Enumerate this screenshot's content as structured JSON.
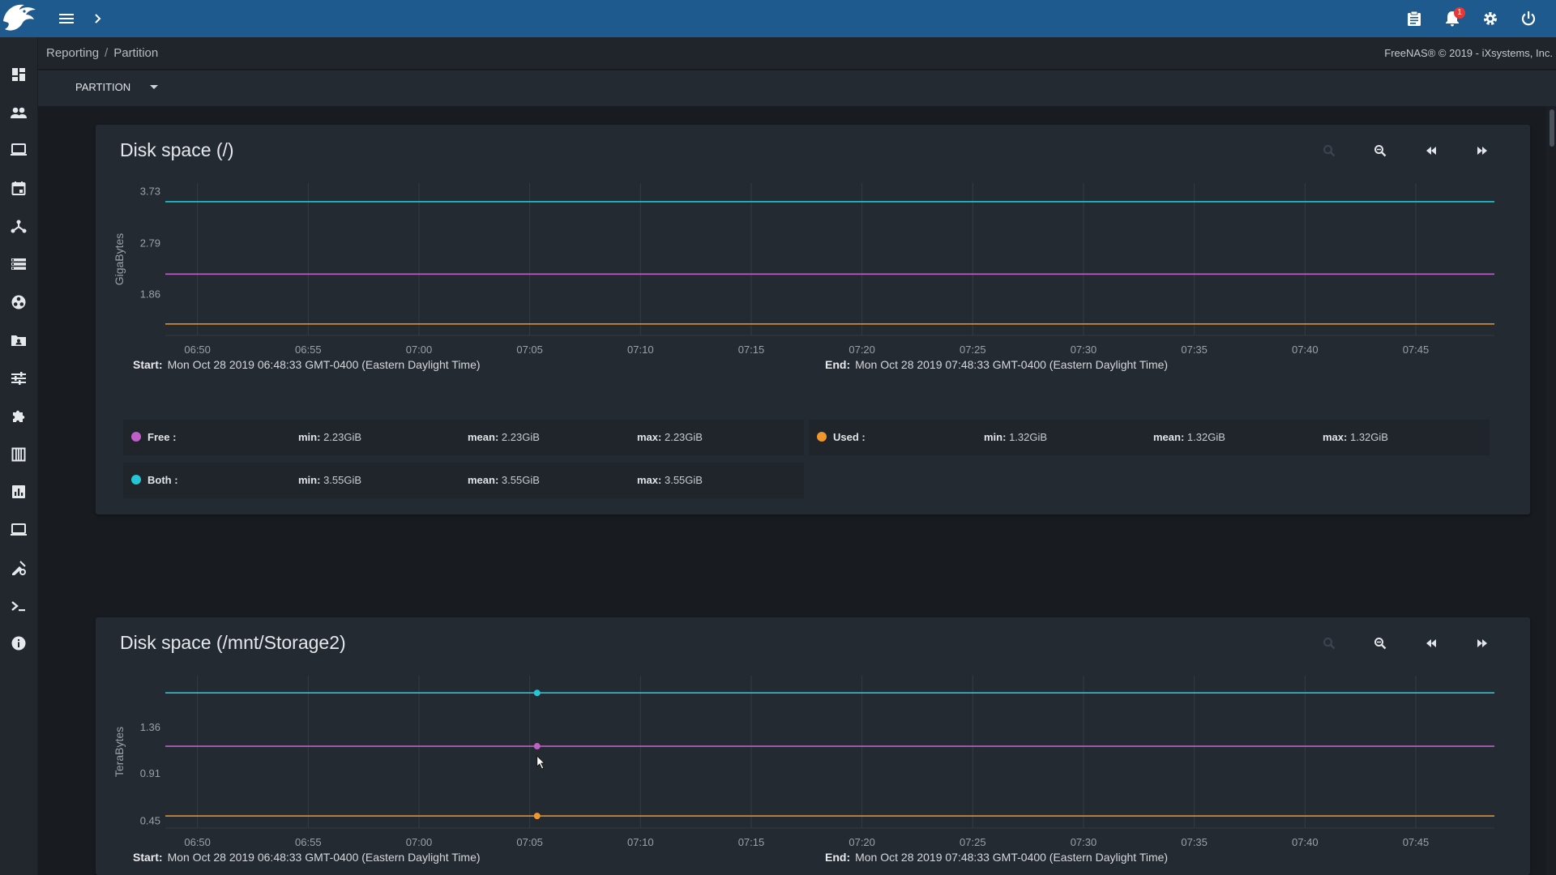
{
  "topbar": {
    "notification_count": "1",
    "icons": [
      "freenas-logo-icon",
      "menu-icon",
      "chevron-right-icon",
      "clipboard-icon",
      "bell-icon",
      "gear-icon",
      "power-icon"
    ]
  },
  "sidebar": {
    "items": [
      {
        "name": "dashboard-icon"
      },
      {
        "name": "accounts-icon"
      },
      {
        "name": "system-icon"
      },
      {
        "name": "tasks-icon"
      },
      {
        "name": "network-icon"
      },
      {
        "name": "storage-icon"
      },
      {
        "name": "directory-services-icon"
      },
      {
        "name": "sharing-icon"
      },
      {
        "name": "services-icon"
      },
      {
        "name": "plugins-icon"
      },
      {
        "name": "jails-icon"
      },
      {
        "name": "reporting-icon"
      },
      {
        "name": "virtual-machines-icon"
      },
      {
        "name": "display-system-processes-icon"
      },
      {
        "name": "shell-icon"
      },
      {
        "name": "guide-icon"
      }
    ]
  },
  "breadcrumb": {
    "items": [
      "Reporting",
      "Partition"
    ],
    "separator": "/"
  },
  "copyright": "FreeNAS® © 2019 - iXsystems, Inc.",
  "toolbar": {
    "selected_report": "PARTITION"
  },
  "colors": {
    "accent": "#1f5a8e",
    "free": "#c05fc8",
    "used": "#f0962a",
    "both": "#25c6d4"
  },
  "charts": [
    {
      "title": "Disk space (/)",
      "start_label": "Start:",
      "start": "Mon Oct 28 2019 06:48:33 GMT-0400 (Eastern Daylight Time)",
      "end_label": "End:",
      "end": "Mon Oct 28 2019 07:48:33 GMT-0400 (Eastern Daylight Time)",
      "legend": [
        {
          "name": "Free :",
          "min_label": "min:",
          "min": "2.23GiB",
          "mean_label": "mean:",
          "mean": "2.23GiB",
          "max_label": "max:",
          "max": "2.23GiB"
        },
        {
          "name": "Used :",
          "min_label": "min:",
          "min": "1.32GiB",
          "mean_label": "mean:",
          "mean": "1.32GiB",
          "max_label": "max:",
          "max": "1.32GiB"
        },
        {
          "name": "Both :",
          "min_label": "min:",
          "min": "3.55GiB",
          "mean_label": "mean:",
          "mean": "3.55GiB",
          "max_label": "max:",
          "max": "3.55GiB"
        }
      ]
    },
    {
      "title": "Disk space (/mnt/Storage2)",
      "start_label": "Start:",
      "start": "Mon Oct 28 2019 06:48:33 GMT-0400 (Eastern Daylight Time)",
      "end_label": "End:",
      "end": "Mon Oct 28 2019 07:48:33 GMT-0400 (Eastern Daylight Time)"
    }
  ],
  "chart_data": [
    {
      "type": "line",
      "title": "Disk space (/)",
      "xlabel": "",
      "ylabel": "GigaBytes",
      "x_ticks": [
        "06:50",
        "06:55",
        "07:00",
        "07:05",
        "07:10",
        "07:15",
        "07:20",
        "07:25",
        "07:30",
        "07:35",
        "07:40",
        "07:45"
      ],
      "y_ticks": [
        "1.86",
        "2.79",
        "3.73"
      ],
      "x_range": [
        "06:48:33",
        "07:48:33"
      ],
      "ylim": [
        1.2,
        3.8
      ],
      "grid": true,
      "series": [
        {
          "name": "Both",
          "color": "#25c6d4",
          "values": [
            3.55,
            3.55
          ]
        },
        {
          "name": "Free",
          "color": "#c05fc8",
          "values": [
            2.23,
            2.23
          ]
        },
        {
          "name": "Used",
          "color": "#f0962a",
          "values": [
            1.32,
            1.32
          ]
        }
      ]
    },
    {
      "type": "line",
      "title": "Disk space (/mnt/Storage2)",
      "xlabel": "",
      "ylabel": "TeraBytes",
      "x_ticks": [
        "06:50",
        "06:55",
        "07:00",
        "07:05",
        "07:10",
        "07:15",
        "07:20",
        "07:25",
        "07:30",
        "07:35",
        "07:40",
        "07:45"
      ],
      "y_ticks": [
        "0.45",
        "0.91",
        "1.36"
      ],
      "x_range": [
        "06:48:33",
        "07:48:33"
      ],
      "ylim": [
        0.43,
        1.82
      ],
      "grid": true,
      "highlight_time": "07:05:20",
      "series": [
        {
          "name": "Both",
          "color": "#25c6d4",
          "values": [
            1.7,
            1.7
          ]
        },
        {
          "name": "Free",
          "color": "#c05fc8",
          "values": [
            1.18,
            1.18
          ]
        },
        {
          "name": "Used",
          "color": "#f0962a",
          "values": [
            0.5,
            0.5
          ]
        }
      ]
    }
  ]
}
